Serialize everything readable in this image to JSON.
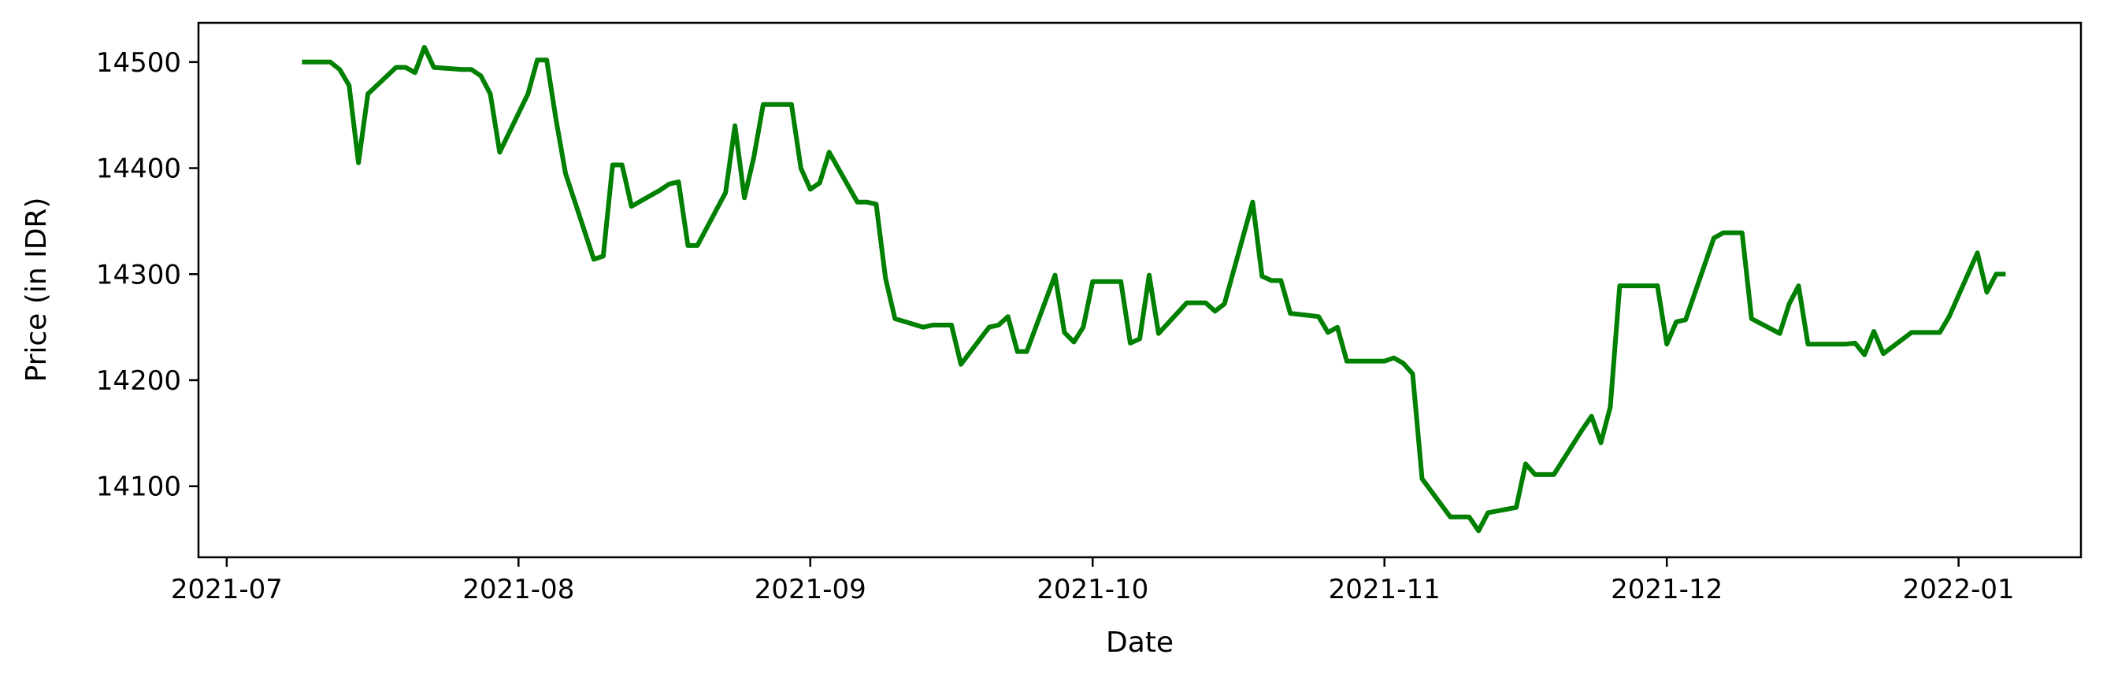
{
  "chart_data": {
    "type": "line",
    "title": "",
    "xlabel": "Date",
    "ylabel": "Price (in IDR)",
    "x_tick_labels": [
      "2021-07",
      "2021-08",
      "2021-09",
      "2021-10",
      "2021-11",
      "2021-12",
      "2022-01"
    ],
    "x_ticks": [
      "2021-07-01",
      "2021-08-01",
      "2021-09-01",
      "2021-10-01",
      "2021-11-01",
      "2021-12-01",
      "2022-01-01"
    ],
    "y_ticks": [
      14100,
      14200,
      14300,
      14400,
      14500
    ],
    "xlim": [
      "2021-06-28",
      "2022-01-14"
    ],
    "ylim": [
      14033,
      14537
    ],
    "grid": false,
    "line_color": "#008000",
    "series": [
      {
        "x": [
          "2021-07-09",
          "2021-07-12",
          "2021-07-13",
          "2021-07-14",
          "2021-07-15",
          "2021-07-16",
          "2021-07-19",
          "2021-07-20",
          "2021-07-21",
          "2021-07-22",
          "2021-07-23",
          "2021-07-26",
          "2021-07-27",
          "2021-07-28",
          "2021-07-29",
          "2021-07-30",
          "2021-08-02",
          "2021-08-03",
          "2021-08-04",
          "2021-08-05",
          "2021-08-06",
          "2021-08-09",
          "2021-08-10",
          "2021-08-11",
          "2021-08-12",
          "2021-08-13",
          "2021-08-16",
          "2021-08-17",
          "2021-08-18",
          "2021-08-19",
          "2021-08-20",
          "2021-08-23",
          "2021-08-24",
          "2021-08-25",
          "2021-08-26",
          "2021-08-27",
          "2021-08-30",
          "2021-08-31",
          "2021-09-01",
          "2021-09-02",
          "2021-09-03",
          "2021-09-06",
          "2021-09-07",
          "2021-09-08",
          "2021-09-09",
          "2021-09-10",
          "2021-09-13",
          "2021-09-14",
          "2021-09-15",
          "2021-09-16",
          "2021-09-17",
          "2021-09-20",
          "2021-09-21",
          "2021-09-22",
          "2021-09-23",
          "2021-09-24",
          "2021-09-27",
          "2021-09-28",
          "2021-09-29",
          "2021-09-30",
          "2021-10-01",
          "2021-10-04",
          "2021-10-05",
          "2021-10-06",
          "2021-10-07",
          "2021-10-08",
          "2021-10-11",
          "2021-10-12",
          "2021-10-13",
          "2021-10-14",
          "2021-10-15",
          "2021-10-18",
          "2021-10-19",
          "2021-10-20",
          "2021-10-21",
          "2021-10-22",
          "2021-10-25",
          "2021-10-26",
          "2021-10-27",
          "2021-10-28",
          "2021-10-29",
          "2021-11-01",
          "2021-11-02",
          "2021-11-03",
          "2021-11-04",
          "2021-11-05",
          "2021-11-08",
          "2021-11-09",
          "2021-11-10",
          "2021-11-11",
          "2021-11-12",
          "2021-11-15",
          "2021-11-16",
          "2021-11-17",
          "2021-11-18",
          "2021-11-19",
          "2021-11-22",
          "2021-11-23",
          "2021-11-24",
          "2021-11-25",
          "2021-11-26",
          "2021-11-29",
          "2021-11-30",
          "2021-12-01",
          "2021-12-02",
          "2021-12-03",
          "2021-12-06",
          "2021-12-07",
          "2021-12-08",
          "2021-12-09",
          "2021-12-10",
          "2021-12-13",
          "2021-12-14",
          "2021-12-15",
          "2021-12-16",
          "2021-12-17",
          "2021-12-20",
          "2021-12-21",
          "2021-12-22",
          "2021-12-23",
          "2021-12-24",
          "2021-12-27",
          "2021-12-28",
          "2021-12-29",
          "2021-12-30",
          "2021-12-31",
          "2022-01-03",
          "2022-01-04",
          "2022-01-05",
          "2022-01-06"
        ],
        "values": [
          14500,
          14500,
          14493,
          14478,
          14405,
          14470,
          14495,
          14495,
          14490,
          14514,
          14495,
          14493,
          14493,
          14487,
          14470,
          14415,
          14470,
          14502,
          14502,
          14445,
          14395,
          14314,
          14317,
          14403,
          14403,
          14364,
          14379,
          14385,
          14387,
          14327,
          14327,
          14377,
          14440,
          14372,
          14410,
          14460,
          14460,
          14400,
          14380,
          14386,
          14415,
          14368,
          14368,
          14366,
          14296,
          14258,
          14250,
          14252,
          14252,
          14252,
          14215,
          14250,
          14252,
          14260,
          14227,
          14227,
          14299,
          14245,
          14236,
          14250,
          14293,
          14293,
          14235,
          14239,
          14299,
          14244,
          14273,
          14273,
          14273,
          14265,
          14272,
          14368,
          14298,
          14294,
          14294,
          14263,
          14260,
          14245,
          14250,
          14218,
          14218,
          14218,
          14221,
          14216,
          14206,
          14107,
          14071,
          14071,
          14071,
          14058,
          14075,
          14080,
          14121,
          14111,
          14111,
          14111,
          14153,
          14166,
          14141,
          14175,
          14289,
          14289,
          14289,
          14234,
          14255,
          14257,
          14334,
          14339,
          14339,
          14339,
          14258,
          14244,
          14272,
          14289,
          14234,
          14234,
          14234,
          14235,
          14224,
          14246,
          14225,
          14245,
          14245,
          14245,
          14245,
          14260,
          14320,
          14283,
          14300,
          14300
        ]
      }
    ]
  }
}
